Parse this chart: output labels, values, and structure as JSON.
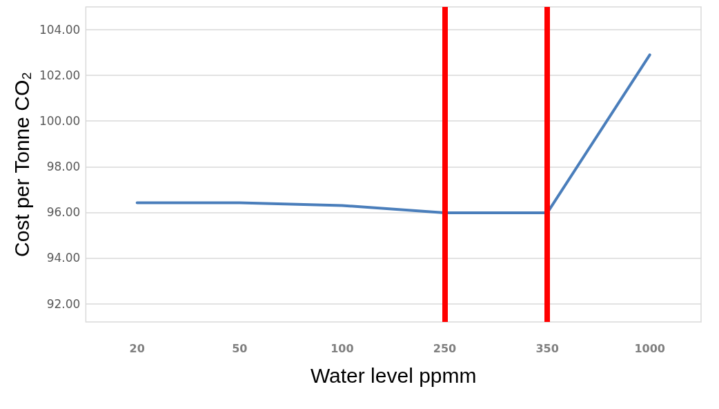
{
  "chart_data": {
    "type": "line",
    "xlabel": "Water level ppmm",
    "ylabel": "Cost per Tonne CO₂",
    "categories": [
      "20",
      "50",
      "100",
      "250",
      "350",
      "1000"
    ],
    "series": [
      {
        "color": "#4a7ebb",
        "values": [
          96.42,
          96.42,
          96.3,
          95.98,
          95.98,
          102.9
        ]
      }
    ],
    "ylim": [
      91.2,
      105
    ],
    "yticks": [
      {
        "value": 92,
        "label": "92.00"
      },
      {
        "value": 94,
        "label": "94.00"
      },
      {
        "value": 96,
        "label": "96.00"
      },
      {
        "value": 98,
        "label": "98.00"
      },
      {
        "value": 100,
        "label": "100.00"
      },
      {
        "value": 102,
        "label": "102.00"
      },
      {
        "value": 104,
        "label": "104.00"
      }
    ],
    "ref_lines": [
      {
        "axis": "x",
        "value": "250",
        "color": "#ff0000"
      },
      {
        "axis": "x",
        "value": "350",
        "color": "#ff0000"
      }
    ],
    "grid": "y",
    "marker": "none",
    "line_style": "solid"
  }
}
